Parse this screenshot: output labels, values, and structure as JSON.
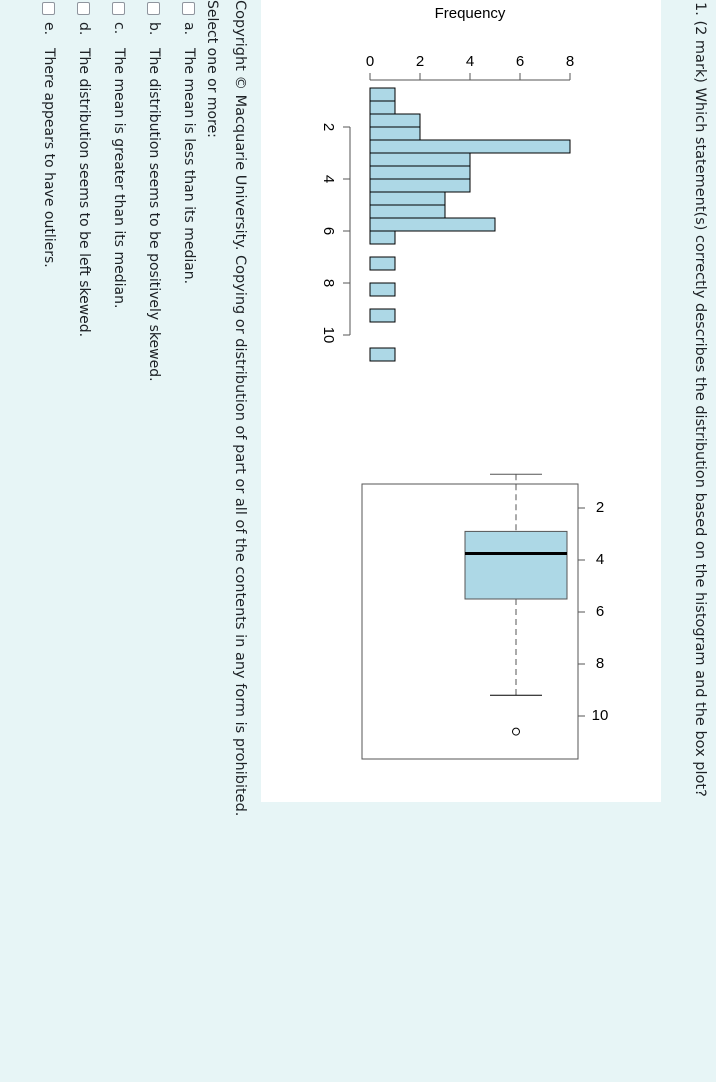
{
  "question": {
    "text": "1. (2 mark) Which statement(s) correctly describes the distribution based on the histogram and the box plot?"
  },
  "copyright": "Copyright © Macquarie University. Copying or distribution of part or all of the contents in any form is prohibited.",
  "prompt": "Select one or more:",
  "options": [
    {
      "letter": "a.",
      "text": "The mean is less than its median.",
      "checked": false
    },
    {
      "letter": "b.",
      "text": "The distribution seems to be positively skewed.",
      "checked": false
    },
    {
      "letter": "c.",
      "text": "The mean is greater than its median.",
      "checked": false
    },
    {
      "letter": "d.",
      "text": "The distribution seems to be left skewed.",
      "checked": false
    },
    {
      "letter": "e.",
      "text": "There appears to have outliers.",
      "checked": false
    }
  ],
  "colors": {
    "background": "#e7f5f6",
    "bar_fill": "#add8e6",
    "panel": "#ffffff"
  },
  "chart_data": [
    {
      "type": "bar",
      "title": "",
      "orientation": "horizontal-bins (rotated histogram)",
      "xlabel": "",
      "ylabel": "Frequency",
      "frequency_ticks": [
        "0",
        "2",
        "4",
        "6",
        "8"
      ],
      "value_ticks": [
        "2",
        "4",
        "6",
        "8",
        "10"
      ],
      "bin_width": 0.5,
      "categories": [
        "0.5-1.0",
        "1.0-1.5",
        "1.5-2.0",
        "2.0-2.5",
        "2.5-3.0",
        "3.0-3.5",
        "3.5-4.0",
        "4.0-4.5",
        "4.5-5.0",
        "5.0-5.5",
        "5.5-6.0",
        "6.0-6.5",
        "6.5-7.0",
        "7.0-7.5",
        "7.5-8.0",
        "8.0-8.5",
        "8.5-9.0",
        "9.0-9.5",
        "9.5-10.0",
        "10.0-10.5",
        "10.5-11.0"
      ],
      "values": [
        1,
        1,
        2,
        2,
        8,
        4,
        4,
        4,
        3,
        3,
        5,
        1,
        0,
        1,
        0,
        1,
        0,
        1,
        0,
        0,
        1
      ],
      "ylim": [
        0,
        8
      ]
    },
    {
      "type": "box",
      "title": "",
      "axis_ticks": [
        "2",
        "4",
        "6",
        "8",
        "10"
      ],
      "lower_whisker": 0.7,
      "q1": 2.9,
      "median": 3.75,
      "q3": 5.5,
      "upper_whisker": 9.2,
      "outliers": [
        10.6
      ]
    }
  ]
}
